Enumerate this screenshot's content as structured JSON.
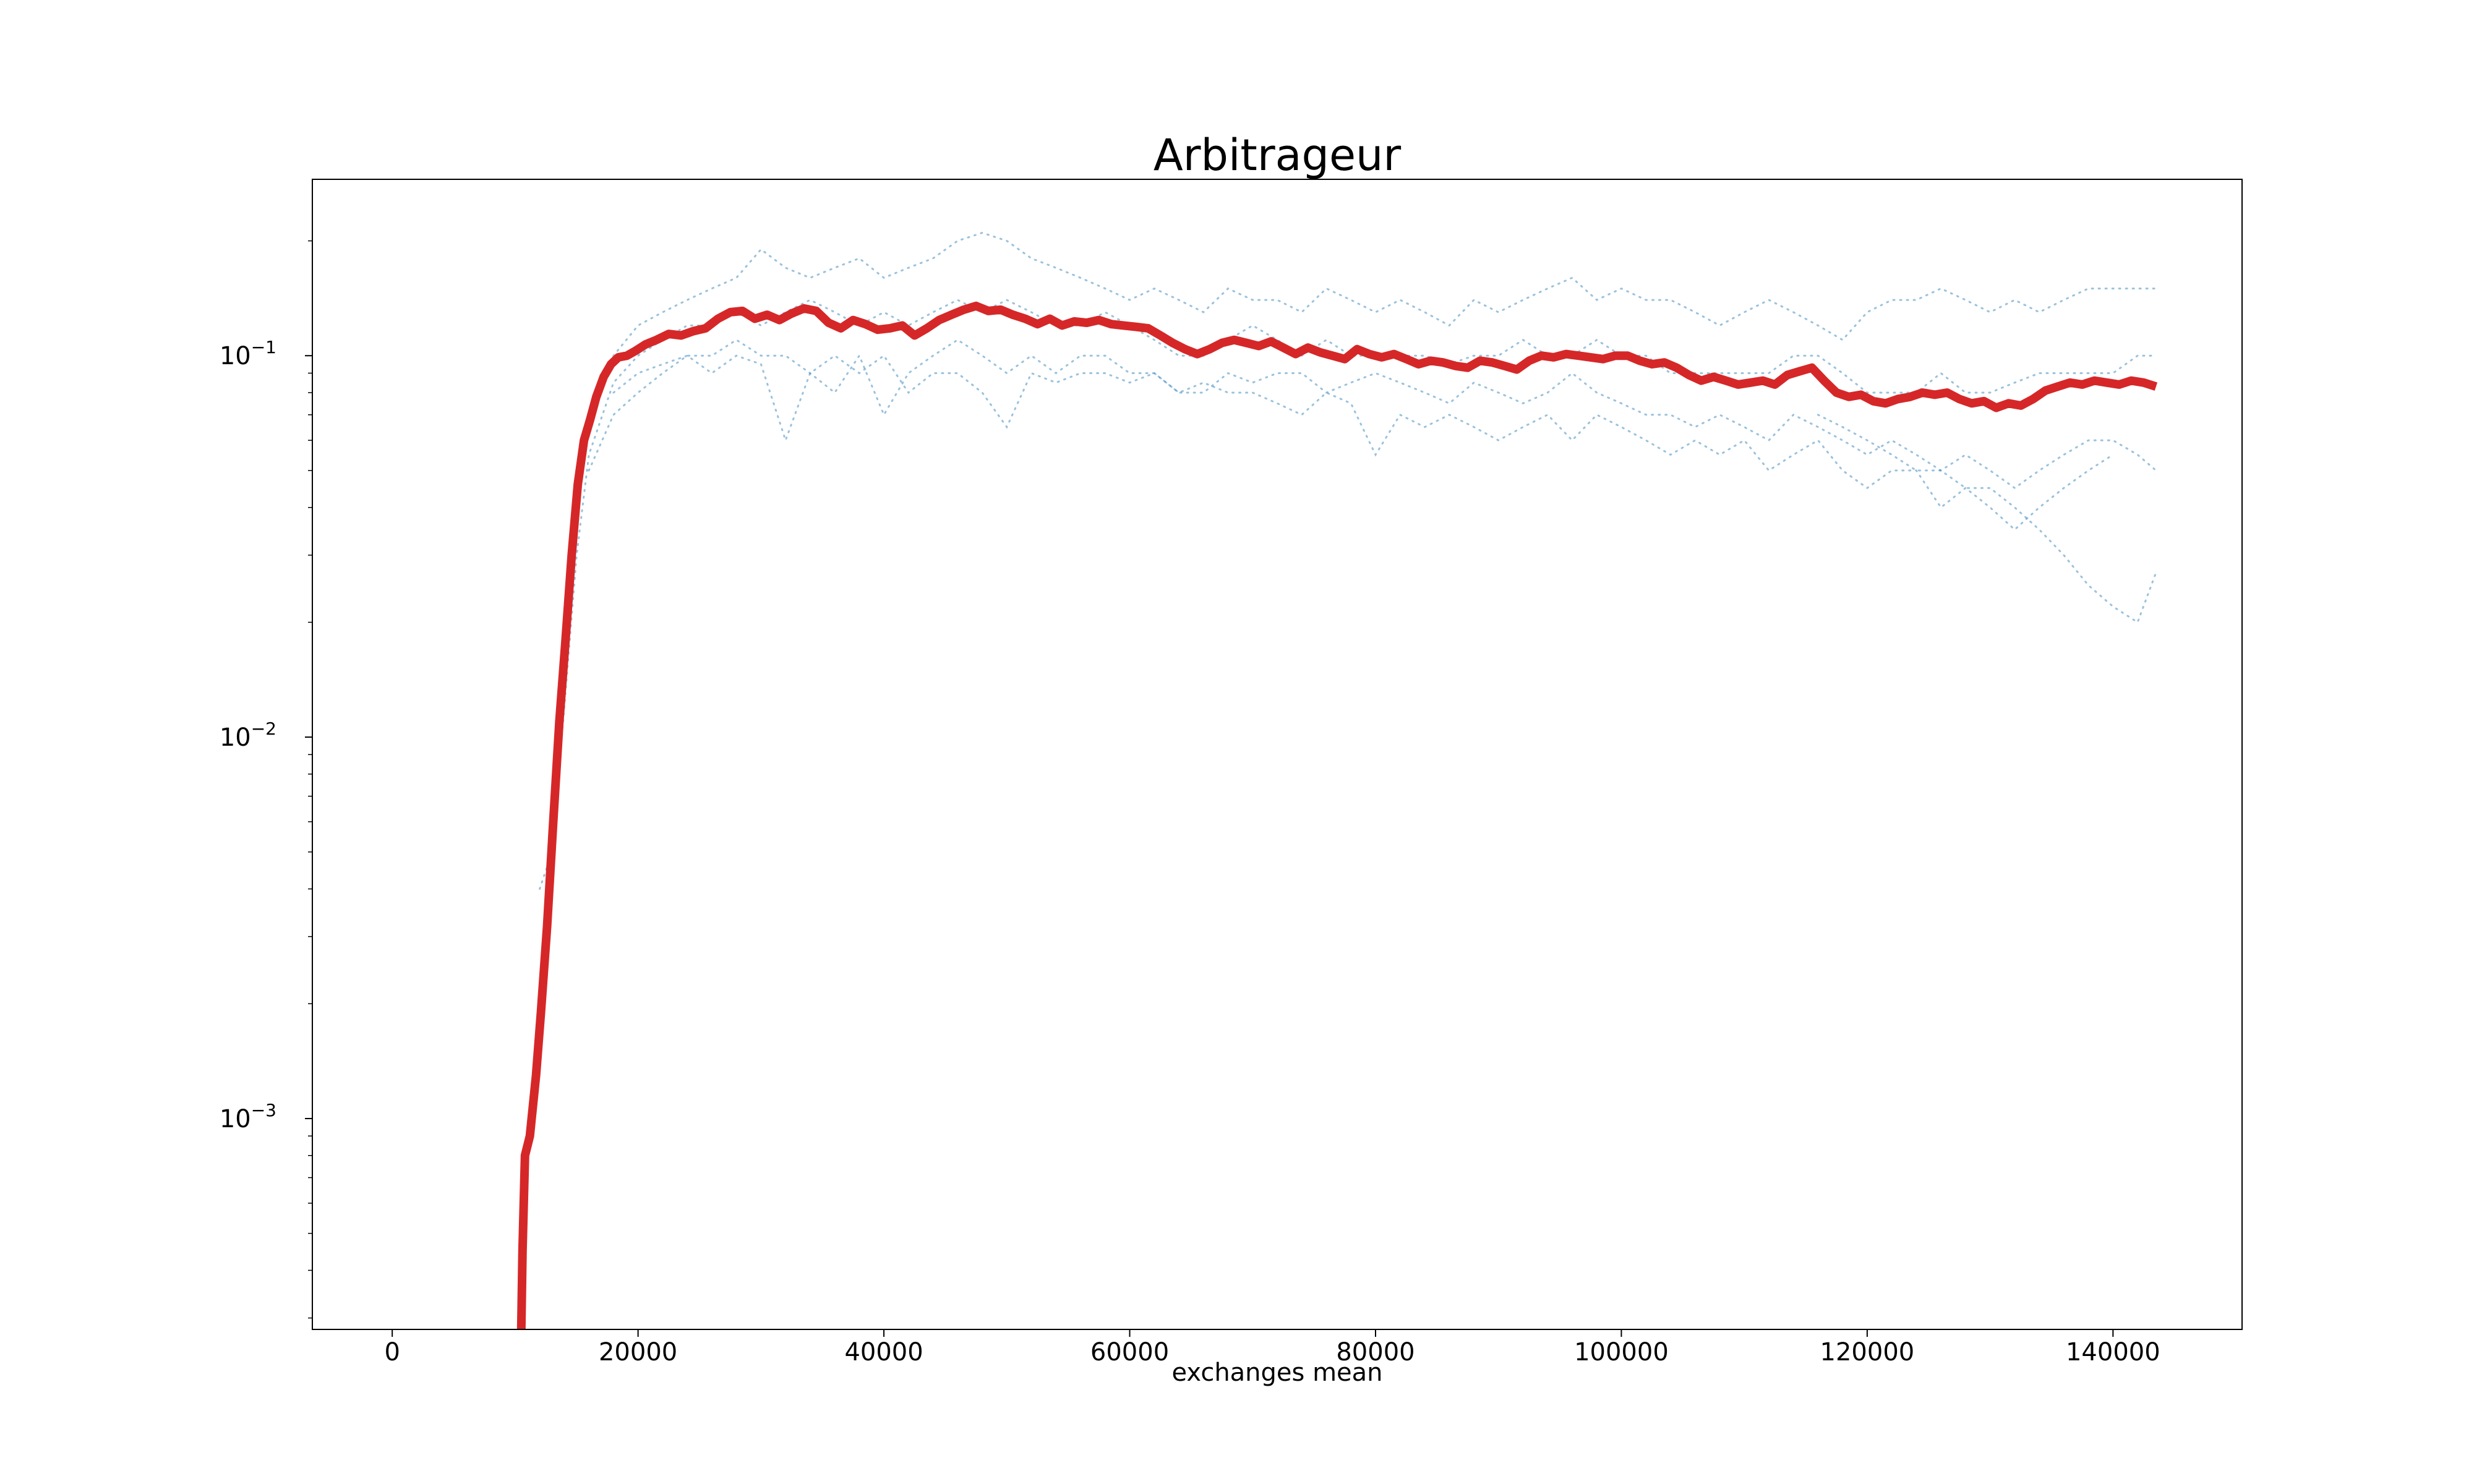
{
  "chart_data": {
    "type": "line",
    "title": "Arbitrageur",
    "xlabel": "exchanges mean",
    "ylabel": "",
    "xlim": [
      -6500,
      150500
    ],
    "ylim": [
      0.00028,
      0.29
    ],
    "yscale": "log",
    "grid": false,
    "x_ticks": [
      0,
      20000,
      40000,
      60000,
      80000,
      100000,
      120000,
      140000
    ],
    "x_tick_labels": [
      "0",
      "20000",
      "40000",
      "60000",
      "80000",
      "100000",
      "120000",
      "140000"
    ],
    "y_ticks": [
      0.001,
      0.01,
      0.1
    ],
    "y_tick_labels": [
      {
        "base": "10",
        "exp": "−3"
      },
      {
        "base": "10",
        "exp": "−2"
      },
      {
        "base": "10",
        "exp": "−1"
      }
    ],
    "colors": {
      "mean": "#d62728",
      "runs": "#1f77b4"
    },
    "series": [
      {
        "role": "mean",
        "x": [
          10500,
          10600,
          10800,
          11200,
          11700,
          12100,
          12600,
          13100,
          13600,
          14100,
          14600,
          15100,
          15600,
          16100,
          16600,
          17200,
          17800,
          18400,
          19100,
          19800,
          20600,
          21500,
          22500,
          23500,
          24500,
          25500,
          26500,
          27500,
          28500,
          29500,
          30500,
          31500,
          32500,
          33500,
          34500,
          35500,
          36500,
          37500,
          38500,
          39500,
          40500,
          41500,
          42500,
          43500,
          44500,
          45500,
          46500,
          47500,
          48500,
          49500,
          50500,
          51500,
          52500,
          53500,
          54500,
          55500,
          56500,
          57500,
          58500,
          59500,
          60500,
          61500,
          62500,
          63500,
          64500,
          65500,
          66500,
          67500,
          68500,
          69500,
          70500,
          71500,
          72500,
          73500,
          74500,
          75500,
          76500,
          77500,
          78500,
          79500,
          80500,
          81500,
          82500,
          83500,
          84500,
          85500,
          86500,
          87500,
          88500,
          89500,
          90500,
          91500,
          92500,
          93500,
          94500,
          95500,
          96500,
          97500,
          98500,
          99500,
          100500,
          101500,
          102500,
          103500,
          104500,
          105500,
          106500,
          107500,
          108500,
          109500,
          110500,
          111500,
          112500,
          113500,
          114500,
          115500,
          116500,
          117500,
          118500,
          119500,
          120500,
          121500,
          122500,
          123500,
          124500,
          125500,
          126500,
          127500,
          128500,
          129500,
          130500,
          131500,
          132500,
          133500,
          134500,
          135500,
          136500,
          137500,
          138500,
          139500,
          140500,
          141500,
          142500,
          143500
        ],
        "y": [
          0.00028,
          0.00045,
          0.0008,
          0.0009,
          0.0013,
          0.0019,
          0.0032,
          0.006,
          0.011,
          0.018,
          0.03,
          0.046,
          0.06,
          0.068,
          0.078,
          0.088,
          0.095,
          0.099,
          0.1,
          0.103,
          0.107,
          0.11,
          0.114,
          0.113,
          0.116,
          0.118,
          0.125,
          0.13,
          0.131,
          0.125,
          0.128,
          0.124,
          0.129,
          0.133,
          0.131,
          0.122,
          0.118,
          0.124,
          0.121,
          0.117,
          0.118,
          0.12,
          0.113,
          0.118,
          0.124,
          0.128,
          0.132,
          0.135,
          0.131,
          0.132,
          0.128,
          0.125,
          0.121,
          0.125,
          0.12,
          0.123,
          0.122,
          0.124,
          0.121,
          0.12,
          0.119,
          0.118,
          0.113,
          0.108,
          0.104,
          0.101,
          0.104,
          0.108,
          0.11,
          0.108,
          0.106,
          0.109,
          0.105,
          0.101,
          0.105,
          0.102,
          0.1,
          0.098,
          0.104,
          0.101,
          0.099,
          0.101,
          0.098,
          0.095,
          0.097,
          0.096,
          0.094,
          0.093,
          0.097,
          0.096,
          0.094,
          0.092,
          0.097,
          0.1,
          0.099,
          0.101,
          0.1,
          0.099,
          0.098,
          0.1,
          0.1,
          0.097,
          0.095,
          0.096,
          0.093,
          0.089,
          0.086,
          0.088,
          0.086,
          0.084,
          0.085,
          0.086,
          0.084,
          0.089,
          0.091,
          0.093,
          0.086,
          0.08,
          0.078,
          0.079,
          0.076,
          0.075,
          0.077,
          0.078,
          0.08,
          0.079,
          0.08,
          0.077,
          0.075,
          0.076,
          0.073,
          0.075,
          0.074,
          0.077,
          0.081,
          0.083,
          0.085,
          0.084,
          0.086,
          0.085,
          0.084,
          0.086,
          0.085,
          0.083
        ]
      }
    ],
    "scatter_runs": [
      {
        "role": "runs",
        "x": [
          14000,
          15000,
          16000,
          17000,
          18000,
          20000,
          22000,
          24000,
          26000,
          28000,
          30000,
          32000,
          34000,
          36000,
          38000,
          40000,
          42000,
          44000,
          46000,
          48000,
          50000,
          52000,
          54000,
          56000,
          58000,
          60000,
          62000,
          64000,
          66000,
          68000,
          70000,
          72000,
          74000,
          76000,
          78000,
          80000,
          82000,
          84000,
          86000,
          88000,
          90000,
          92000,
          94000,
          96000,
          98000,
          100000,
          102000,
          104000,
          106000,
          108000,
          110000,
          112000,
          114000,
          116000,
          118000,
          120000,
          122000,
          124000,
          126000,
          128000,
          130000,
          132000,
          134000,
          136000,
          138000,
          140000,
          142000,
          143500
        ],
        "y": [
          0.02,
          0.04,
          0.065,
          0.085,
          0.1,
          0.12,
          0.13,
          0.14,
          0.15,
          0.16,
          0.19,
          0.17,
          0.16,
          0.17,
          0.18,
          0.16,
          0.17,
          0.18,
          0.2,
          0.21,
          0.2,
          0.18,
          0.17,
          0.16,
          0.15,
          0.14,
          0.15,
          0.14,
          0.13,
          0.15,
          0.14,
          0.14,
          0.13,
          0.15,
          0.14,
          0.13,
          0.14,
          0.13,
          0.12,
          0.14,
          0.13,
          0.14,
          0.15,
          0.16,
          0.14,
          0.15,
          0.14,
          0.14,
          0.13,
          0.12,
          0.13,
          0.14,
          0.13,
          0.12,
          0.11,
          0.13,
          0.14,
          0.14,
          0.15,
          0.14,
          0.13,
          0.14,
          0.13,
          0.14,
          0.15,
          0.15,
          0.15,
          0.15
        ]
      },
      {
        "role": "runs",
        "x": [
          12000,
          13000,
          14000,
          15000,
          16000,
          18000,
          20000,
          22000,
          24000,
          26000,
          28000,
          30000,
          32000,
          34000,
          36000,
          38000,
          40000,
          42000,
          44000,
          46000,
          48000,
          50000,
          52000,
          54000,
          56000,
          58000,
          60000,
          62000,
          64000,
          66000,
          68000,
          70000,
          72000,
          74000,
          76000,
          78000,
          80000,
          82000,
          84000,
          86000,
          88000,
          90000,
          92000,
          94000,
          96000,
          98000,
          100000,
          102000,
          104000,
          106000,
          108000,
          110000,
          112000,
          114000,
          116000,
          118000,
          120000,
          122000,
          124000,
          126000,
          128000,
          130000,
          132000,
          134000,
          136000,
          138000,
          140000,
          142000,
          143500
        ],
        "y": [
          0.004,
          0.005,
          0.012,
          0.03,
          0.055,
          0.085,
          0.1,
          0.11,
          0.12,
          0.12,
          0.13,
          0.12,
          0.13,
          0.14,
          0.13,
          0.12,
          0.13,
          0.12,
          0.13,
          0.14,
          0.13,
          0.14,
          0.13,
          0.12,
          0.12,
          0.13,
          0.12,
          0.11,
          0.1,
          0.1,
          0.11,
          0.12,
          0.11,
          0.1,
          0.11,
          0.1,
          0.1,
          0.1,
          0.1,
          0.095,
          0.1,
          0.1,
          0.11,
          0.1,
          0.1,
          0.11,
          0.1,
          0.1,
          0.09,
          0.09,
          0.09,
          0.09,
          0.09,
          0.1,
          0.1,
          0.09,
          0.08,
          0.08,
          0.08,
          0.09,
          0.08,
          0.08,
          0.085,
          0.09,
          0.09,
          0.09,
          0.09,
          0.1,
          0.1
        ]
      },
      {
        "role": "runs",
        "x": [
          16000,
          18000,
          20000,
          22000,
          24000,
          26000,
          28000,
          30000,
          32000,
          34000,
          36000,
          38000,
          40000,
          42000,
          44000,
          46000,
          48000,
          50000,
          52000,
          54000,
          56000,
          58000,
          60000,
          62000,
          64000,
          66000,
          68000,
          70000,
          72000,
          74000,
          76000,
          78000,
          80000,
          82000,
          84000,
          86000,
          88000,
          90000,
          92000,
          94000,
          96000,
          98000,
          100000,
          102000,
          104000,
          106000,
          108000,
          110000,
          112000,
          114000,
          116000,
          118000,
          120000,
          122000,
          124000,
          126000,
          128000,
          130000,
          132000,
          134000,
          136000,
          138000,
          140000,
          142000,
          143500
        ],
        "y": [
          0.05,
          0.07,
          0.08,
          0.09,
          0.1,
          0.1,
          0.11,
          0.1,
          0.1,
          0.09,
          0.08,
          0.1,
          0.07,
          0.09,
          0.1,
          0.11,
          0.1,
          0.09,
          0.1,
          0.09,
          0.1,
          0.1,
          0.09,
          0.09,
          0.08,
          0.08,
          0.09,
          0.085,
          0.09,
          0.09,
          0.08,
          0.085,
          0.09,
          0.085,
          0.08,
          0.075,
          0.085,
          0.08,
          0.075,
          0.08,
          0.09,
          0.08,
          0.075,
          0.07,
          0.07,
          0.065,
          0.07,
          0.065,
          0.06,
          0.07,
          0.065,
          0.06,
          0.055,
          0.06,
          0.055,
          0.05,
          0.055,
          0.05,
          0.045,
          0.05,
          0.055,
          0.06,
          0.06,
          0.055,
          0.05
        ]
      },
      {
        "role": "runs",
        "x": [
          116000,
          118000,
          120000,
          122000,
          124000,
          126000,
          128000,
          130000,
          132000,
          134000,
          136000,
          138000,
          140000,
          142000,
          143500
        ],
        "y": [
          0.07,
          0.065,
          0.06,
          0.055,
          0.05,
          0.05,
          0.045,
          0.045,
          0.04,
          0.035,
          0.03,
          0.025,
          0.022,
          0.02,
          0.027
        ]
      },
      {
        "role": "runs",
        "x": [
          18000,
          20000,
          22000,
          24000,
          26000,
          28000,
          30000,
          32000,
          34000,
          36000,
          38000,
          40000,
          42000,
          44000,
          46000,
          48000,
          50000,
          52000,
          54000,
          56000,
          58000,
          60000,
          62000,
          64000,
          66000,
          68000,
          70000,
          72000,
          74000,
          76000,
          78000,
          80000,
          82000,
          84000,
          86000,
          88000,
          90000,
          92000,
          94000,
          96000,
          98000,
          100000,
          102000,
          104000,
          106000,
          108000,
          110000,
          112000,
          114000,
          116000,
          118000,
          120000,
          122000,
          124000,
          126000,
          128000,
          130000,
          132000,
          134000,
          136000,
          138000,
          140000
        ],
        "y": [
          0.08,
          0.09,
          0.095,
          0.1,
          0.09,
          0.1,
          0.095,
          0.06,
          0.09,
          0.1,
          0.09,
          0.1,
          0.08,
          0.09,
          0.09,
          0.08,
          0.065,
          0.09,
          0.085,
          0.09,
          0.09,
          0.085,
          0.09,
          0.08,
          0.085,
          0.08,
          0.08,
          0.075,
          0.07,
          0.08,
          0.075,
          0.055,
          0.07,
          0.065,
          0.07,
          0.065,
          0.06,
          0.065,
          0.07,
          0.06,
          0.07,
          0.065,
          0.06,
          0.055,
          0.06,
          0.055,
          0.06,
          0.05,
          0.055,
          0.06,
          0.05,
          0.045,
          0.05,
          0.05,
          0.04,
          0.045,
          0.04,
          0.035,
          0.04,
          0.045,
          0.05,
          0.055
        ]
      }
    ]
  }
}
